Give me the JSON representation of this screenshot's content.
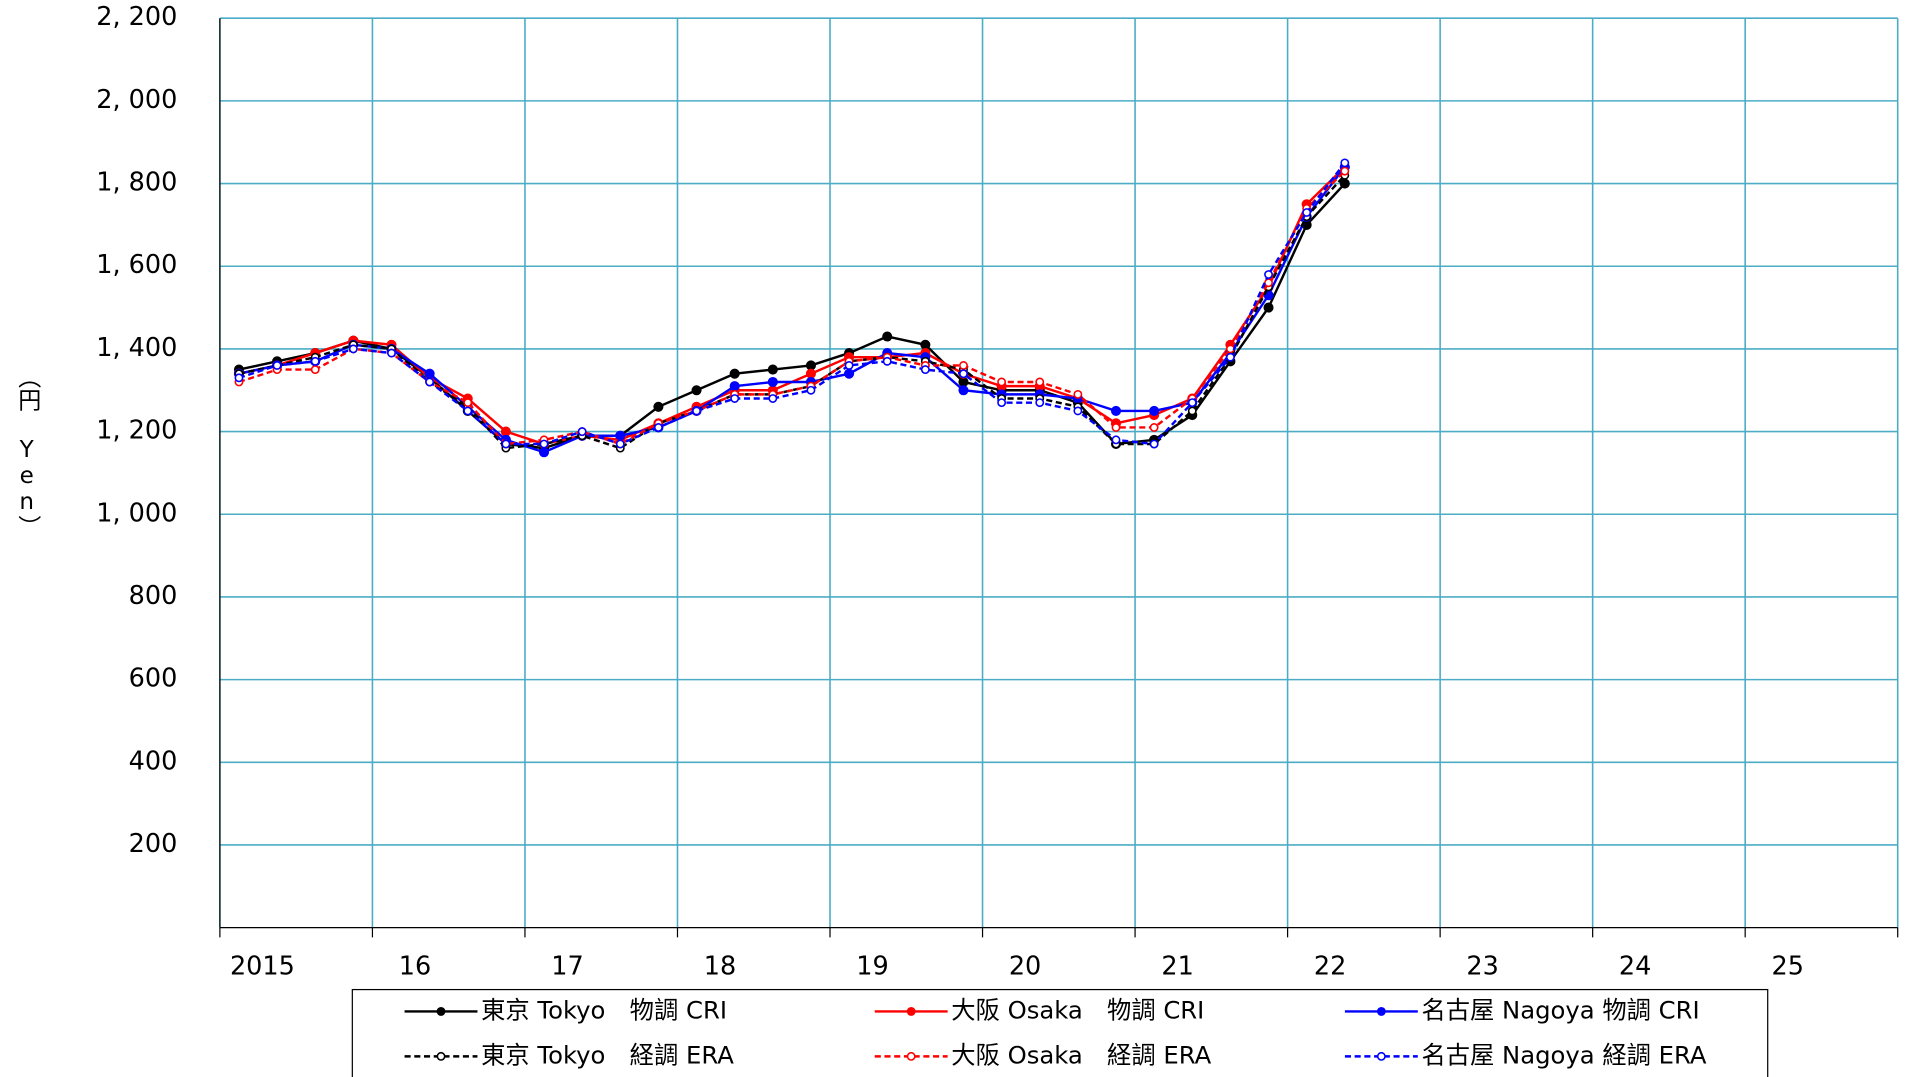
{
  "chart_data": {
    "type": "line",
    "y_label": "（円 Yen）",
    "x": [
      2015.125,
      2015.375,
      2015.625,
      2015.875,
      2016.125,
      2016.375,
      2016.625,
      2016.875,
      2017.125,
      2017.375,
      2017.625,
      2017.875,
      2018.125,
      2018.375,
      2018.625,
      2018.875,
      2019.125,
      2019.375,
      2019.625,
      2019.875,
      2020.125,
      2020.375,
      2020.625,
      2020.875,
      2021.125,
      2021.375,
      2021.625,
      2021.875,
      2022.125,
      2022.375
    ],
    "xlim": [
      2015,
      2026
    ],
    "xticks": [
      2015,
      {
        "value": 2016,
        "label": "16"
      },
      {
        "value": 2017,
        "label": "17"
      },
      {
        "value": 2018,
        "label": "18"
      },
      {
        "value": 2019,
        "label": "19"
      },
      {
        "value": 2020,
        "label": "20"
      },
      {
        "value": 2021,
        "label": "21"
      },
      {
        "value": 2022,
        "label": "22"
      },
      {
        "value": 2023,
        "label": "23"
      },
      {
        "value": 2024,
        "label": "24"
      },
      {
        "value": 2025,
        "label": "25"
      }
    ],
    "ylim": [
      0,
      2200
    ],
    "yticks": [
      200,
      400,
      600,
      800,
      {
        "value": 1000,
        "label": "1, 000"
      },
      {
        "value": 1200,
        "label": "1, 200"
      },
      {
        "value": 1400,
        "label": "1, 400"
      },
      {
        "value": 1600,
        "label": "1, 600"
      },
      {
        "value": 1800,
        "label": "1, 800"
      },
      {
        "value": 2000,
        "label": "2, 000"
      },
      {
        "value": 2200,
        "label": "2, 200"
      }
    ],
    "grid": true,
    "legend": "bottom",
    "series": [
      {
        "name": "東京 Tokyo　物調 CRI",
        "color": "#000000",
        "dashed": false,
        "marker": "filled",
        "values": [
          1350,
          1370,
          1390,
          1420,
          1400,
          1330,
          1250,
          1170,
          1160,
          1190,
          1190,
          1260,
          1300,
          1340,
          1350,
          1360,
          1390,
          1430,
          1410,
          1320,
          1300,
          1300,
          1270,
          1170,
          1180,
          1240,
          1370,
          1500,
          1700,
          1800
        ]
      },
      {
        "name": "大阪 Osaka　物調 CRI",
        "color": "#ff0000",
        "dashed": false,
        "marker": "filled",
        "values": [
          1340,
          1360,
          1390,
          1420,
          1410,
          1330,
          1280,
          1200,
          1170,
          1190,
          1180,
          1220,
          1260,
          1300,
          1300,
          1340,
          1380,
          1380,
          1390,
          1340,
          1310,
          1310,
          1280,
          1220,
          1240,
          1280,
          1410,
          1550,
          1750,
          1840
        ]
      },
      {
        "name": "名古屋 Nagoya 物調 CRI",
        "color": "#0000ff",
        "dashed": false,
        "marker": "filled",
        "values": [
          1340,
          1360,
          1370,
          1410,
          1400,
          1340,
          1260,
          1180,
          1150,
          1190,
          1190,
          1210,
          1250,
          1310,
          1320,
          1320,
          1340,
          1390,
          1380,
          1300,
          1290,
          1290,
          1280,
          1250,
          1250,
          1270,
          1390,
          1530,
          1720,
          1840
        ]
      },
      {
        "name": "東京 Tokyo　経調 ERA",
        "color": "#000000",
        "dashed": true,
        "marker": "open",
        "values": [
          1340,
          1360,
          1380,
          1410,
          1400,
          1320,
          1260,
          1160,
          1170,
          1190,
          1160,
          1220,
          1250,
          1290,
          1290,
          1310,
          1370,
          1380,
          1370,
          1350,
          1280,
          1280,
          1260,
          1170,
          1170,
          1250,
          1380,
          1550,
          1720,
          1820
        ]
      },
      {
        "name": "大阪 Osaka　経調 ERA",
        "color": "#ff0000",
        "dashed": true,
        "marker": "open",
        "values": [
          1320,
          1350,
          1350,
          1400,
          1390,
          1320,
          1270,
          1170,
          1180,
          1200,
          1170,
          1220,
          1250,
          1290,
          1290,
          1310,
          1370,
          1380,
          1360,
          1360,
          1320,
          1320,
          1290,
          1210,
          1210,
          1280,
          1400,
          1560,
          1740,
          1830
        ]
      },
      {
        "name": "名古屋 Nagoya 経調 ERA",
        "color": "#0000ff",
        "dashed": true,
        "marker": "open",
        "values": [
          1330,
          1360,
          1370,
          1400,
          1390,
          1320,
          1250,
          1170,
          1170,
          1200,
          1170,
          1210,
          1250,
          1280,
          1280,
          1300,
          1360,
          1370,
          1350,
          1340,
          1270,
          1270,
          1250,
          1180,
          1170,
          1270,
          1380,
          1580,
          1730,
          1850
        ]
      }
    ]
  }
}
